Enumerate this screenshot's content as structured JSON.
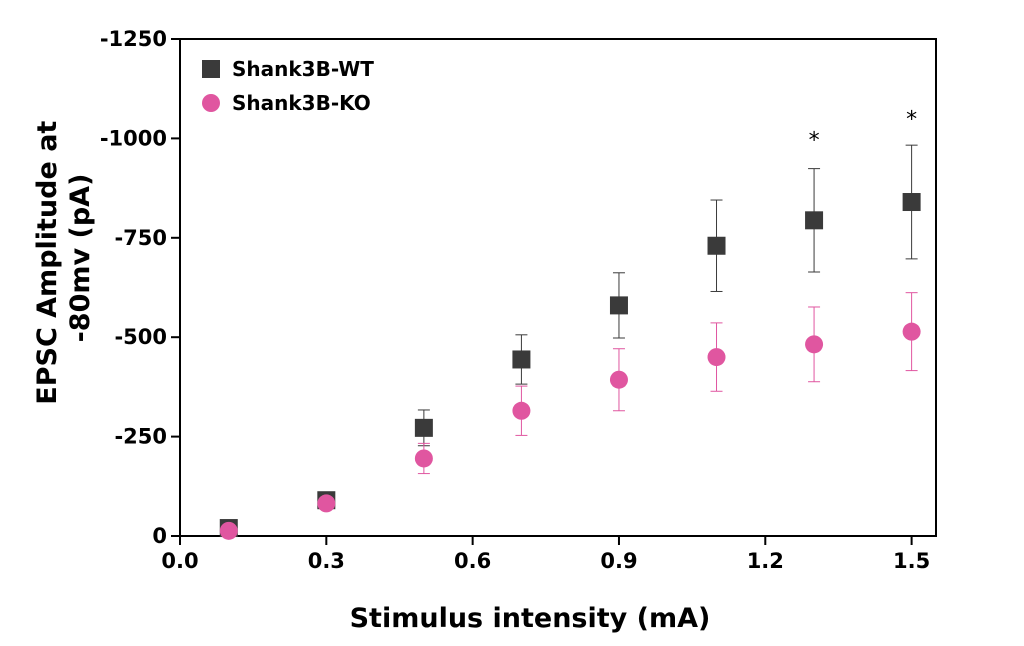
{
  "chart_data": {
    "type": "scatter",
    "title": "",
    "xlabel": "Stimulus intensity (mA)",
    "ylabel_lines": [
      "EPSC Amplitude at",
      "-80mv (pA)"
    ],
    "xlim": [
      0.0,
      1.55
    ],
    "ylim": [
      0,
      -1250
    ],
    "x_ticks": [
      0.0,
      0.3,
      0.6,
      0.9,
      1.2,
      1.5
    ],
    "x_tick_labels": [
      "0.0",
      "0.3",
      "0.6",
      "0.9",
      "1.2",
      "1.5"
    ],
    "y_ticks": [
      0,
      -250,
      -500,
      -750,
      -1000,
      -1250
    ],
    "y_tick_labels": [
      "0",
      "-250",
      "-500",
      "-750",
      "-1000",
      "-1250"
    ],
    "legend_position": "top-left",
    "grid": false,
    "series": [
      {
        "name": "Shank3B-WT",
        "marker": "square",
        "color": "#3a3a3a",
        "x": [
          0.1,
          0.3,
          0.5,
          0.7,
          0.9,
          1.1,
          1.3,
          1.5
        ],
        "y": [
          -20,
          -90,
          -272,
          -444,
          -580,
          -730,
          -794,
          -840
        ],
        "err": [
          5,
          8,
          45,
          62,
          82,
          115,
          130,
          143
        ]
      },
      {
        "name": "Shank3B-KO",
        "marker": "circle",
        "color": "#e056a0",
        "x": [
          0.1,
          0.3,
          0.5,
          0.7,
          0.9,
          1.1,
          1.3,
          1.5
        ],
        "y": [
          -13,
          -82,
          -195,
          -315,
          -393,
          -450,
          -482,
          -514
        ],
        "err": [
          4,
          8,
          38,
          62,
          78,
          86,
          94,
          98
        ]
      }
    ],
    "annotations": [
      {
        "x": 1.3,
        "y": -995,
        "text": "*"
      },
      {
        "x": 1.5,
        "y": -1048,
        "text": "*"
      }
    ]
  }
}
